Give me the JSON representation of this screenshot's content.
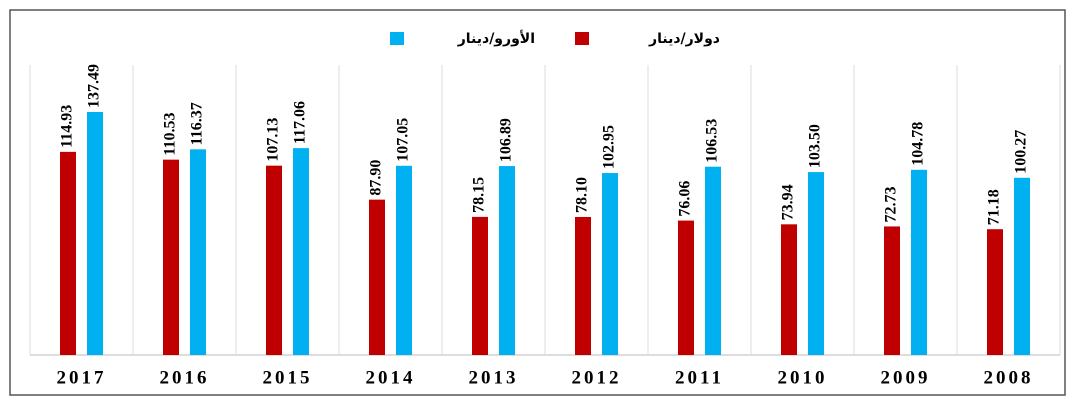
{
  "chart_data": {
    "type": "bar",
    "categories": [
      "2017",
      "2016",
      "2015",
      "2014",
      "2013",
      "2012",
      "2011",
      "2010",
      "2009",
      "2008"
    ],
    "series": [
      {
        "name": "دولار/دينار",
        "color": "#c00000",
        "values": [
          114.93,
          110.53,
          107.13,
          87.9,
          78.15,
          78.1,
          76.06,
          73.94,
          72.73,
          71.18
        ],
        "value_labels": [
          "114.93",
          "110.53",
          "107.13",
          "87.90",
          "78.15",
          "78.10",
          "76.06",
          "73.94",
          "72.73",
          "71.18"
        ]
      },
      {
        "name": "الأورو/دينار",
        "color": "#00b0f0",
        "values": [
          137.49,
          116.37,
          117.06,
          107.05,
          106.89,
          102.95,
          106.53,
          103.5,
          104.78,
          100.27
        ],
        "value_labels": [
          "137.49",
          "116.37",
          "117.06",
          "107.05",
          "106.89",
          "102.95",
          "106.53",
          "103.50",
          "104.78",
          "100.27"
        ]
      }
    ]
  }
}
